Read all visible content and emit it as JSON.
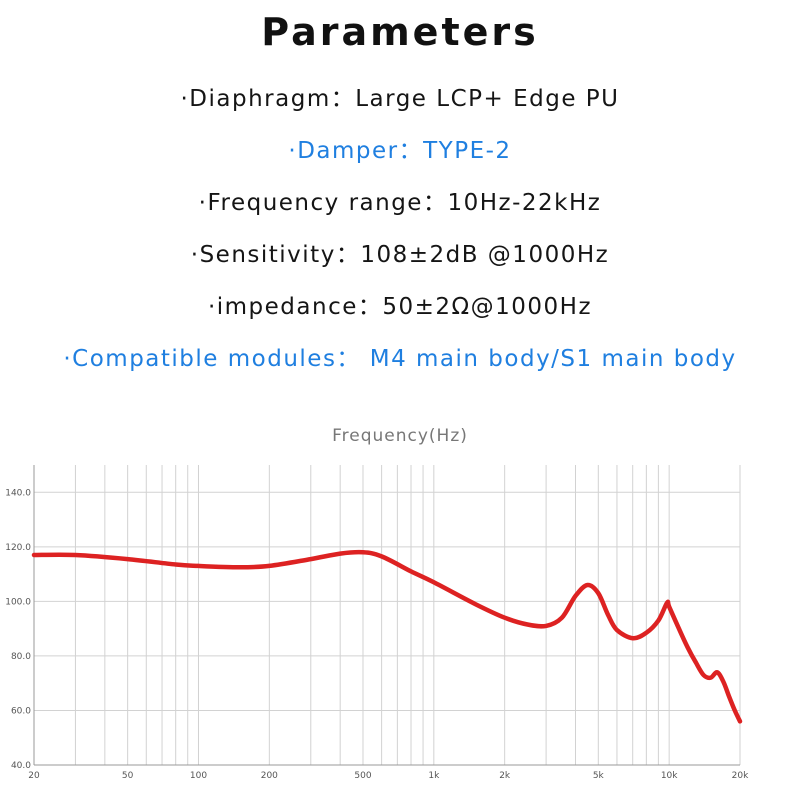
{
  "heading": "Parameters",
  "specs": [
    {
      "text": "·Diaphragm：Large LCP+ Edge PU",
      "color": "#151515"
    },
    {
      "text": "·Damper：TYPE-2",
      "color": "#1f7fe0"
    },
    {
      "text": "·Frequency range：10Hz-22kHz",
      "color": "#151515"
    },
    {
      "text": "·Sensitivity：108±2dB @1000Hz",
      "color": "#151515"
    },
    {
      "text": "·impedance：50±2Ω@1000Hz",
      "color": "#151515"
    },
    {
      "text": "·Compatible modules： M4 main body/S1 main body",
      "color": "#1f7fe0"
    }
  ],
  "chart_data": {
    "type": "line",
    "title": "Frequency(Hz)",
    "xlabel": "",
    "ylabel": "",
    "x_scale": "log",
    "xlim": [
      20,
      20000
    ],
    "ylim": [
      40,
      150
    ],
    "grid": true,
    "x_ticks": [
      {
        "value": 20,
        "label": "20"
      },
      {
        "value": 50,
        "label": "50"
      },
      {
        "value": 100,
        "label": "100"
      },
      {
        "value": 200,
        "label": "200"
      },
      {
        "value": 500,
        "label": "500"
      },
      {
        "value": 1000,
        "label": "1k"
      },
      {
        "value": 2000,
        "label": "2k"
      },
      {
        "value": 5000,
        "label": "5k"
      },
      {
        "value": 10000,
        "label": "10k"
      },
      {
        "value": 20000,
        "label": "20k"
      }
    ],
    "y_ticks": [
      {
        "value": 40,
        "label": "40.0"
      },
      {
        "value": 60,
        "label": "60.0"
      },
      {
        "value": 80,
        "label": "80.0"
      },
      {
        "value": 100,
        "label": "100.0"
      },
      {
        "value": 120,
        "label": "120.0"
      },
      {
        "value": 140,
        "label": "140.0"
      }
    ],
    "series": [
      {
        "color": "#dd2222",
        "x": [
          20,
          30,
          50,
          80,
          100,
          150,
          200,
          300,
          400,
          500,
          600,
          800,
          1000,
          1500,
          2000,
          2500,
          3000,
          3500,
          4000,
          4500,
          5000,
          5500,
          6000,
          7000,
          8000,
          9000,
          9800,
          10000,
          11000,
          12000,
          13000,
          14000,
          15000,
          16000,
          17000,
          18000,
          19000,
          20000
        ],
        "y": [
          117,
          117,
          115.5,
          113.5,
          113,
          112.5,
          113,
          115.5,
          117.5,
          118,
          116.5,
          111,
          107,
          99,
          94,
          91.5,
          91,
          94,
          102,
          106,
          103,
          95,
          89.5,
          86.5,
          88.5,
          93,
          99.5,
          98,
          90,
          83,
          77.5,
          73,
          72,
          74,
          70.5,
          65,
          60,
          56
        ]
      }
    ]
  }
}
